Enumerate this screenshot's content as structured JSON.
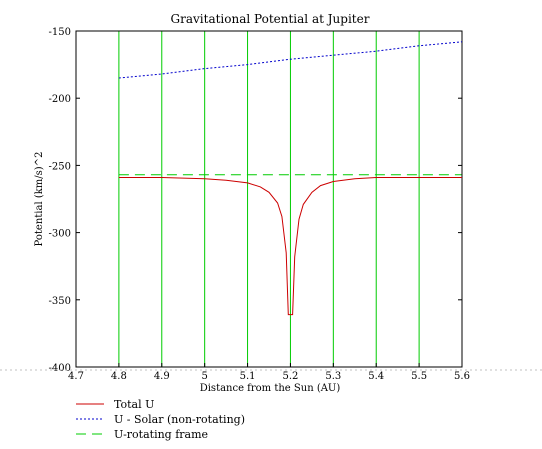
{
  "chart_data": {
    "type": "line",
    "title": "Gravitational Potential at Jupiter",
    "xlabel": "Distance from the Sun (AU)",
    "ylabel": "Potential (km/s)^2",
    "xlim": [
      4.7,
      5.6
    ],
    "ylim": [
      -400,
      -150
    ],
    "x_ticks": [
      "4.7",
      "4.8",
      "4.9",
      "5",
      "5.1",
      "5.2",
      "5.3",
      "5.4",
      "5.5",
      "5.6"
    ],
    "x_tick_values": [
      4.7,
      4.8,
      4.9,
      5.0,
      5.1,
      5.2,
      5.3,
      5.4,
      5.5,
      5.6
    ],
    "y_ticks": [
      "-150",
      "-200",
      "-250",
      "-300",
      "-350",
      "-400"
    ],
    "y_tick_values": [
      -150,
      -200,
      -250,
      -300,
      -350,
      -400
    ],
    "vertical_gridlines_x": [
      4.8,
      4.9,
      5.0,
      5.1,
      5.2,
      5.3,
      5.4,
      5.5,
      5.6
    ],
    "legend_position": "bottom-left",
    "series": [
      {
        "name": "Total U",
        "color": "#cc0000",
        "style": "solid",
        "x": [
          4.8,
          4.9,
          5.0,
          5.05,
          5.1,
          5.13,
          5.15,
          5.17,
          5.18,
          5.19,
          5.195,
          5.2,
          5.205,
          5.21,
          5.22,
          5.23,
          5.25,
          5.27,
          5.3,
          5.35,
          5.4,
          5.5,
          5.6
        ],
        "values": [
          -259,
          -259,
          -260,
          -261,
          -263,
          -266,
          -270,
          -278,
          -288,
          -315,
          -361,
          -361,
          -361,
          -318,
          -290,
          -279,
          -270,
          -265,
          -262,
          -260,
          -259,
          -259,
          -259
        ]
      },
      {
        "name": "U - Solar (non-rotating)",
        "color": "#0000cc",
        "style": "dotted",
        "x": [
          4.8,
          4.9,
          5.0,
          5.1,
          5.2,
          5.3,
          5.4,
          5.5,
          5.6
        ],
        "values": [
          -185,
          -182,
          -178,
          -175,
          -171,
          -168,
          -165,
          -161,
          -158
        ]
      },
      {
        "name": "U-rotating frame",
        "color": "#00cc00",
        "style": "dashed",
        "x": [
          4.8,
          5.6
        ],
        "values": [
          -257,
          -257
        ]
      }
    ]
  }
}
